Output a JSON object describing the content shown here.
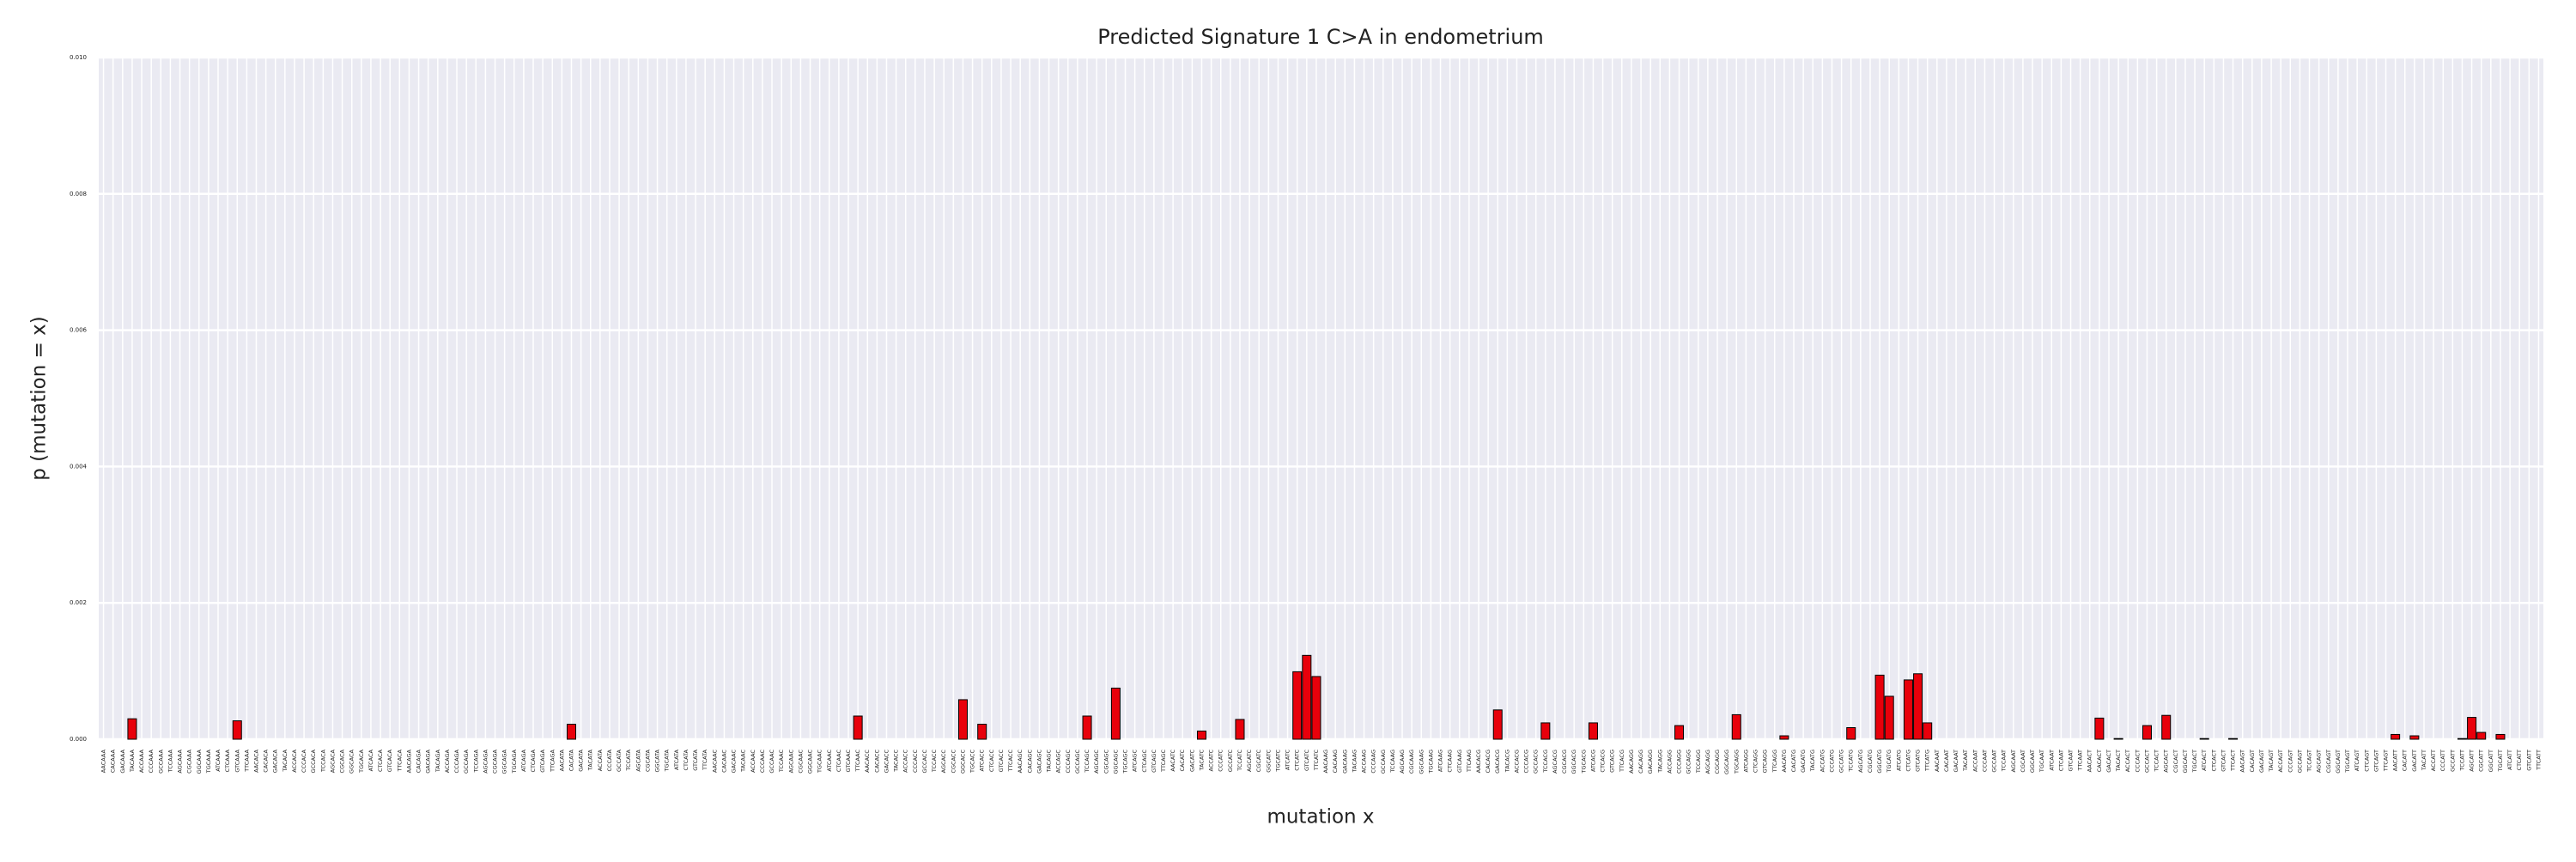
{
  "chart_data": {
    "type": "bar",
    "title": "Predicted Signature 1 C>A in endometrium",
    "xlabel": "mutation x",
    "ylabel": "p (mutation = x)",
    "categories": [
      "AACAAA",
      "CACAAA",
      "GACAAA",
      "TACAAA",
      "ACCAAA",
      "CCCAAA",
      "GCCAAA",
      "TCCAAA",
      "AGCAAA",
      "CGCAAA",
      "GGCAAA",
      "TGCAAA",
      "ATCAAA",
      "CTCAAA",
      "GTCAAA",
      "TTCAAA",
      "AACACA",
      "CACACA",
      "GACACA",
      "TACACA",
      "ACCACA",
      "CCCACA",
      "GCCACA",
      "TCCACA",
      "AGCACA",
      "CGCACA",
      "GGCACA",
      "TGCACA",
      "ATCACA",
      "CTCACA",
      "GTCACA",
      "TTCACA",
      "AACAGA",
      "CACAGA",
      "GACAGA",
      "TACAGA",
      "ACCAGA",
      "CCCAGA",
      "GCCAGA",
      "TCCAGA",
      "AGCAGA",
      "CGCAGA",
      "GGCAGA",
      "TGCAGA",
      "ATCAGA",
      "CTCAGA",
      "GTCAGA",
      "TTCAGA",
      "AACATA",
      "CACATA",
      "GACATA",
      "TACATA",
      "ACCATA",
      "CCCATA",
      "GCCATA",
      "TCCATA",
      "AGCATA",
      "CGCATA",
      "GGCATA",
      "TGCATA",
      "ATCATA",
      "CTCATA",
      "GTCATA",
      "TTCATA",
      "AACAAC",
      "CACAAC",
      "GACAAC",
      "TACAAC",
      "ACCAAC",
      "CCCAAC",
      "GCCAAC",
      "TCCAAC",
      "AGCAAC",
      "CGCAAC",
      "GGCAAC",
      "TGCAAC",
      "ATCAAC",
      "CTCAAC",
      "GTCAAC",
      "TTCAAC",
      "AACACC",
      "CACACC",
      "GACACC",
      "TACACC",
      "ACCACC",
      "CCCACC",
      "GCCACC",
      "TCCACC",
      "AGCACC",
      "CGCACC",
      "GGCACC",
      "TGCACC",
      "ATCACC",
      "CTCACC",
      "GTCACC",
      "TTCACC",
      "AACAGC",
      "CACAGC",
      "GACAGC",
      "TACAGC",
      "ACCAGC",
      "CCCAGC",
      "GCCAGC",
      "TCCAGC",
      "AGCAGC",
      "CGCAGC",
      "GGCAGC",
      "TGCAGC",
      "ATCAGC",
      "CTCAGC",
      "GTCAGC",
      "TTCAGC",
      "AACATC",
      "CACATC",
      "GACATC",
      "TACATC",
      "ACCATC",
      "CCCATC",
      "GCCATC",
      "TCCATC",
      "AGCATC",
      "CGCATC",
      "GGCATC",
      "TGCATC",
      "ATCATC",
      "CTCATC",
      "GTCATC",
      "TTCATC",
      "AACAAG",
      "CACAAG",
      "GACAAG",
      "TACAAG",
      "ACCAAG",
      "CCCAAG",
      "GCCAAG",
      "TCCAAG",
      "AGCAAG",
      "CGCAAG",
      "GGCAAG",
      "TGCAAG",
      "ATCAAG",
      "CTCAAG",
      "GTCAAG",
      "TTCAAG",
      "AACACG",
      "CACACG",
      "GACACG",
      "TACACG",
      "ACCACG",
      "CCCACG",
      "GCCACG",
      "TCCACG",
      "AGCACG",
      "CGCACG",
      "GGCACG",
      "TGCACG",
      "ATCACG",
      "CTCACG",
      "GTCACG",
      "TTCACG",
      "AACAGG",
      "CACAGG",
      "GACAGG",
      "TACAGG",
      "ACCAGG",
      "CCCAGG",
      "GCCAGG",
      "TCCAGG",
      "AGCAGG",
      "CGCAGG",
      "GGCAGG",
      "TGCAGG",
      "ATCAGG",
      "CTCAGG",
      "GTCAGG",
      "TTCAGG",
      "AACATG",
      "CACATG",
      "GACATG",
      "TACATG",
      "ACCATG",
      "CCCATG",
      "GCCATG",
      "TCCATG",
      "AGCATG",
      "CGCATG",
      "GGCATG",
      "TGCATG",
      "ATCATG",
      "CTCATG",
      "GTCATG",
      "TTCATG",
      "AACAAT",
      "CACAAT",
      "GACAAT",
      "TACAAT",
      "ACCAAT",
      "CCCAAT",
      "GCCAAT",
      "TCCAAT",
      "AGCAAT",
      "CGCAAT",
      "GGCAAT",
      "TGCAAT",
      "ATCAAT",
      "CTCAAT",
      "GTCAAT",
      "TTCAAT",
      "AACACT",
      "CACACT",
      "GACACT",
      "TACACT",
      "ACCACT",
      "CCCACT",
      "GCCACT",
      "TCCACT",
      "AGCACT",
      "CGCACT",
      "GGCACT",
      "TGCACT",
      "ATCACT",
      "CTCACT",
      "GTCACT",
      "TTCACT",
      "AACAGT",
      "CACAGT",
      "GACAGT",
      "TACAGT",
      "ACCAGT",
      "CCCAGT",
      "GCCAGT",
      "TCCAGT",
      "AGCAGT",
      "CGCAGT",
      "GGCAGT",
      "TGCAGT",
      "ATCAGT",
      "CTCAGT",
      "GTCAGT",
      "TTCAGT",
      "AACATT",
      "CACATT",
      "GACATT",
      "TACATT",
      "ACCATT",
      "CCCATT",
      "GCCATT",
      "TCCATT",
      "AGCATT",
      "CGCATT",
      "GGCATT",
      "TGCATT",
      "ATCATT",
      "CTCATT",
      "GTCATT",
      "TTCATT"
    ],
    "values": [
      0,
      0,
      0,
      0.0003,
      0,
      0,
      0,
      0,
      0,
      0,
      0,
      0,
      0,
      0,
      0.00027,
      0,
      0,
      0,
      0,
      0,
      0,
      0,
      0,
      0,
      0,
      0,
      0,
      0,
      0,
      0,
      0,
      0,
      0,
      0,
      0,
      0,
      0,
      0,
      0,
      0,
      0,
      0,
      0,
      0,
      0,
      0,
      0,
      0,
      0,
      0.00022,
      0,
      0,
      0,
      0,
      0,
      0,
      0,
      0,
      0,
      0,
      0,
      0,
      0,
      0,
      0,
      0,
      0,
      0,
      0,
      0,
      0,
      0,
      0,
      0,
      0,
      0,
      0,
      0,
      0,
      0.00034,
      0,
      0,
      0,
      0,
      0,
      0,
      0,
      0,
      0,
      0,
      0.00058,
      0,
      0.00022,
      0,
      0,
      0,
      0,
      0,
      0,
      0,
      0,
      0,
      0,
      0.00034,
      0,
      0,
      0.00075,
      0,
      0,
      0,
      0,
      0,
      0,
      0,
      0,
      0.00012,
      0,
      0,
      0,
      0.00029,
      0,
      0,
      0,
      0,
      0,
      0.00099,
      0.00123,
      0.00092,
      0,
      0,
      0,
      0,
      0,
      0,
      0,
      0,
      0,
      0,
      0,
      0,
      0,
      0,
      0,
      0,
      0,
      0,
      0.00043,
      0,
      0,
      0,
      0,
      0.00024,
      0,
      0,
      0,
      0,
      0.00024,
      0,
      0,
      0,
      0,
      0,
      0,
      0,
      0,
      0.0002,
      0,
      0,
      0,
      0,
      0,
      0.00036,
      0,
      0,
      0,
      0,
      5e-05,
      0,
      0,
      0,
      0,
      0,
      0,
      0.00017,
      0,
      0,
      0.00094,
      0.00063,
      0,
      0.00087,
      0.00096,
      0.00024,
      0,
      0,
      0,
      0,
      0,
      0,
      0,
      0,
      0,
      0,
      0,
      0,
      0,
      0,
      0,
      0,
      0,
      0.00031,
      0,
      1e-05,
      0,
      0,
      0.0002,
      0,
      0.00035,
      0,
      0,
      0,
      1e-05,
      0,
      0,
      1e-05,
      0,
      0,
      0,
      0,
      0,
      0,
      0,
      0,
      0,
      0,
      0,
      0,
      0,
      0,
      0,
      0,
      7e-05,
      0,
      5e-05,
      0,
      0,
      0,
      0,
      1e-05,
      0.00032,
      0.0001,
      0,
      7e-05,
      0,
      0,
      0,
      0
    ],
    "color": "#e8000b",
    "edgecolor": "#000000",
    "ylim": [
      0,
      0.01
    ],
    "yticks": [
      {
        "value": 0,
        "label": "0.000"
      },
      {
        "value": 0.002,
        "label": "0.002"
      },
      {
        "value": 0.004,
        "label": "0.004"
      },
      {
        "value": 0.006,
        "label": "0.006"
      },
      {
        "value": 0.008,
        "label": "0.008"
      },
      {
        "value": 0.01,
        "label": "0.010"
      }
    ],
    "grid": true
  }
}
